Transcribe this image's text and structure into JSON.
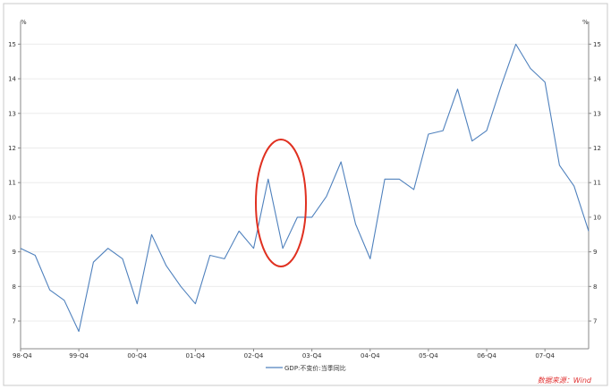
{
  "chart_data": {
    "type": "line",
    "title": "",
    "xlabel": "",
    "ylabel": "",
    "y_unit_left": "%",
    "y_unit_right": "%",
    "ylim": [
      6.2,
      15.5
    ],
    "yticks": [
      7,
      8,
      9,
      10,
      11,
      12,
      13,
      14,
      15
    ],
    "x_tick_labels": [
      "98-Q4",
      "99-Q4",
      "00-Q4",
      "01-Q4",
      "02-Q4",
      "03-Q4",
      "04-Q4",
      "05-Q4",
      "06-Q4",
      "07-Q4"
    ],
    "grid": true,
    "legend_position": "bottom-center",
    "series": [
      {
        "name": "GDP:不变价:当季同比",
        "color": "#4f81bd",
        "values": [
          9.1,
          8.9,
          7.9,
          7.6,
          6.7,
          8.7,
          9.1,
          8.8,
          7.5,
          9.5,
          8.6,
          8.0,
          7.5,
          8.9,
          8.8,
          9.6,
          9.1,
          11.1,
          9.1,
          10.0,
          10.0,
          10.6,
          11.6,
          9.8,
          8.8,
          11.1,
          11.1,
          10.8,
          12.4,
          12.5,
          13.7,
          12.2,
          12.5,
          13.8,
          15.0,
          14.3,
          13.9,
          11.5,
          10.9,
          9.6
        ]
      }
    ],
    "annotation": {
      "shape": "ellipse",
      "color": "#e03020",
      "around_index_range": [
        17,
        18
      ]
    },
    "source_note": "数据来源：Wind"
  }
}
